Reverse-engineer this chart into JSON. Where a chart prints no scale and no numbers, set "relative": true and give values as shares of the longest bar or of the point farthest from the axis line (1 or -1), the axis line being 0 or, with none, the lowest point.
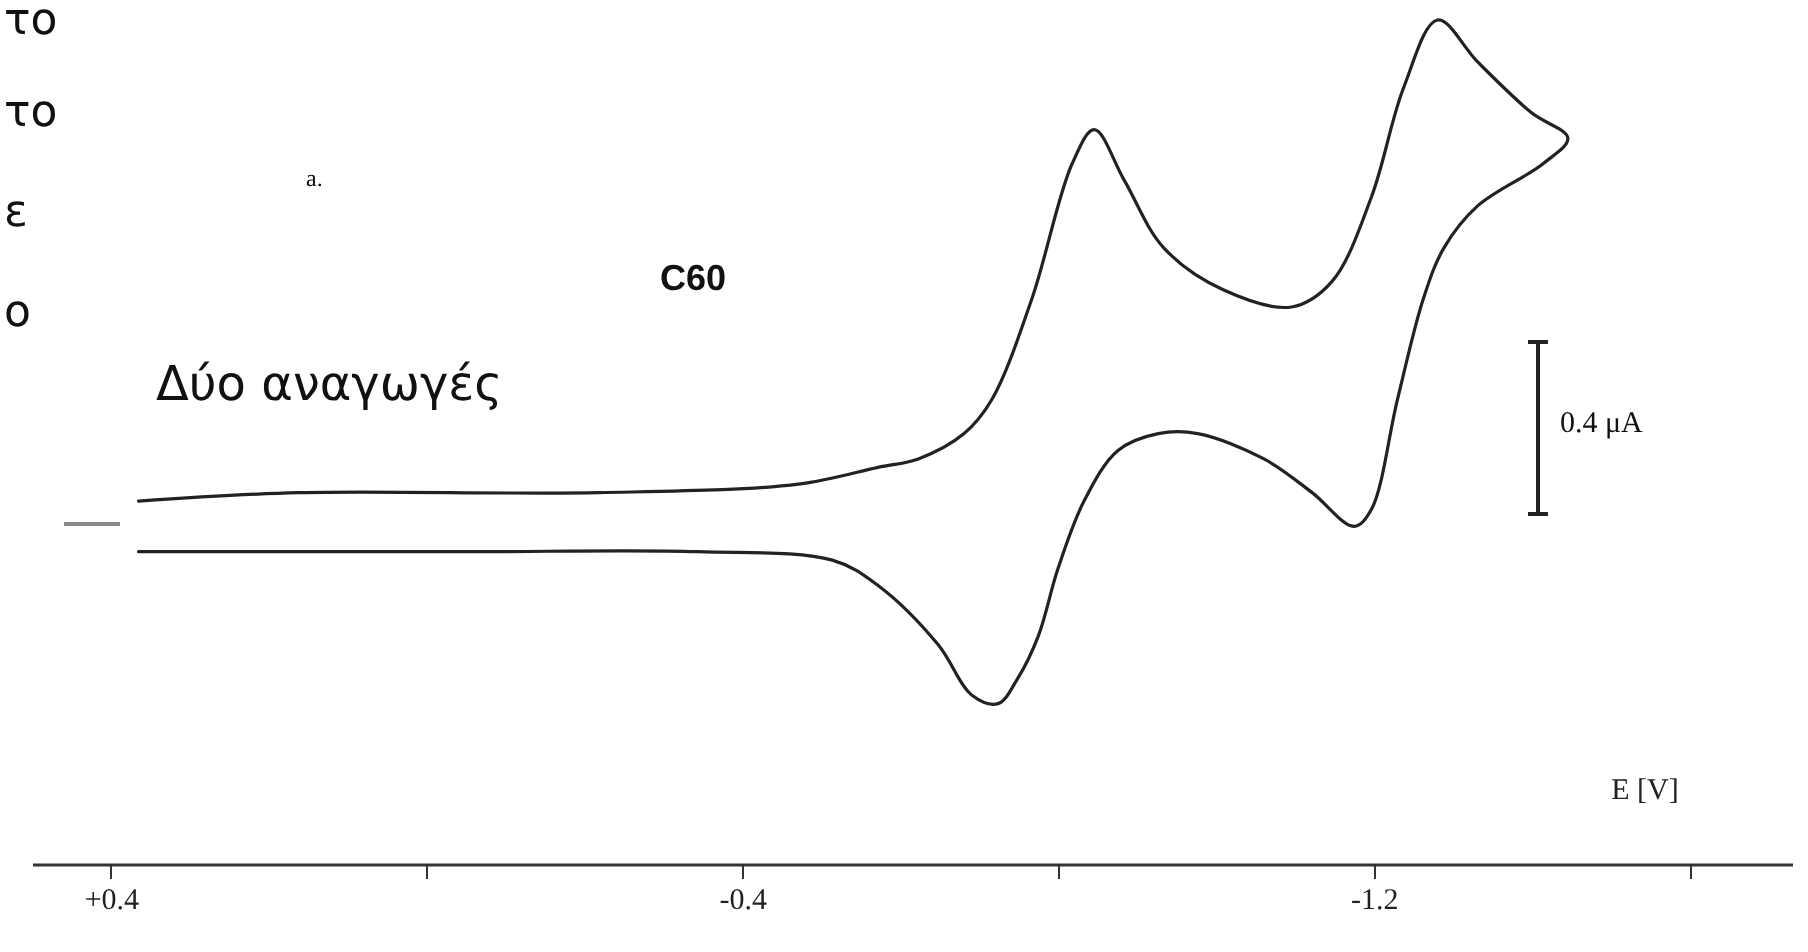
{
  "chart_data": {
    "type": "line",
    "relative": true,
    "xlabel": "E [V]",
    "xlim": [
      0.5,
      -1.73
    ],
    "xticks": [
      {
        "value": 0.4,
        "label": "+0.4"
      },
      {
        "value": 0,
        "label": null
      },
      -0.4,
      {
        "value": -0.8,
        "label": null
      },
      -1.2,
      {
        "value": -1.6,
        "label": null
      }
    ],
    "tick_labels": "x",
    "series": [
      {
        "color": "#222222",
        "x": [
          0.365,
          0.162,
          -0.218,
          -0.471,
          -0.572,
          -0.623,
          -0.681,
          -0.716,
          -0.767,
          -0.818,
          -0.846,
          -0.884,
          -0.934,
          -1.01,
          -1.096,
          -1.147,
          -1.197,
          -1.238,
          -1.281,
          -1.332,
          -1.4,
          -1.446,
          -1.415,
          -1.332,
          -1.289,
          -1.263,
          -1.23,
          -1.197,
          -1.175,
          -1.122,
          -1.061,
          -0.977,
          -0.927,
          -0.876,
          -0.833,
          -0.8,
          -0.775,
          -0.749,
          -0.724,
          -0.691,
          -0.648,
          -0.572,
          -0.514,
          -0.344,
          -0.048,
          0.365
        ],
        "values": [
          0.43,
          0.44,
          0.44,
          0.45,
          0.47,
          0.48,
          0.51,
          0.55,
          0.67,
          0.83,
          0.87,
          0.81,
          0.73,
          0.68,
          0.66,
          0.69,
          0.79,
          0.92,
          1.0,
          0.95,
          0.89,
          0.86,
          0.83,
          0.78,
          0.73,
          0.67,
          0.55,
          0.42,
          0.4,
          0.44,
          0.48,
          0.51,
          0.51,
          0.49,
          0.43,
          0.35,
          0.27,
          0.22,
          0.19,
          0.2,
          0.26,
          0.33,
          0.36,
          0.37,
          0.37,
          0.37
        ]
      }
    ],
    "annotations": [
      "το",
      "το",
      "ε",
      "ο",
      "a.",
      "C60",
      "Δύο αναγωγές",
      "0.4 μA"
    ]
  }
}
